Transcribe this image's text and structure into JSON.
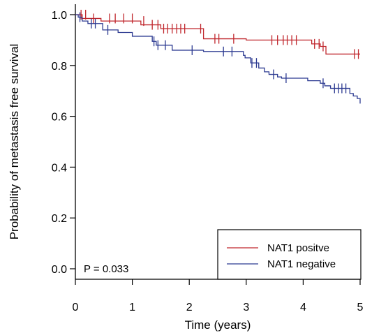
{
  "chart_data": {
    "type": "line",
    "title": "",
    "xlabel": "Time (years)",
    "ylabel": "Probability of metastasis free survival",
    "xlim": [
      0,
      5
    ],
    "ylim": [
      0,
      1
    ],
    "x_ticks": [
      0,
      1,
      2,
      3,
      4,
      5
    ],
    "y_ticks": [
      0.0,
      0.2,
      0.4,
      0.6,
      0.8,
      1.0
    ],
    "x_tick_labels": [
      "0",
      "1",
      "2",
      "3",
      "4",
      "5"
    ],
    "y_tick_labels": [
      "0.0",
      "0.2",
      "0.4",
      "0.6",
      "0.8",
      "1.0"
    ],
    "annotation": "P = 0.033",
    "legend_position": "bottom-right",
    "series": [
      {
        "name": "NAT1 positve",
        "color": "#c0272d",
        "steps": [
          [
            0,
            1.0
          ],
          [
            0.12,
            0.985
          ],
          [
            0.45,
            0.975
          ],
          [
            1.15,
            0.96
          ],
          [
            1.5,
            0.945
          ],
          [
            2.25,
            0.905
          ],
          [
            3.0,
            0.9
          ],
          [
            4.15,
            0.885
          ],
          [
            4.3,
            0.875
          ],
          [
            4.4,
            0.845
          ],
          [
            5.0,
            0.845
          ]
        ],
        "censored": [
          [
            0.1,
            1.0
          ],
          [
            0.18,
            1.0
          ],
          [
            0.32,
            0.985
          ],
          [
            0.6,
            0.985
          ],
          [
            0.7,
            0.985
          ],
          [
            0.85,
            0.985
          ],
          [
            1.0,
            0.985
          ],
          [
            1.2,
            0.975
          ],
          [
            1.35,
            0.96
          ],
          [
            1.45,
            0.96
          ],
          [
            1.55,
            0.945
          ],
          [
            1.62,
            0.945
          ],
          [
            1.7,
            0.945
          ],
          [
            1.78,
            0.945
          ],
          [
            1.85,
            0.945
          ],
          [
            1.92,
            0.945
          ],
          [
            2.2,
            0.945
          ],
          [
            2.45,
            0.905
          ],
          [
            2.52,
            0.905
          ],
          [
            2.78,
            0.905
          ],
          [
            3.45,
            0.9
          ],
          [
            3.55,
            0.9
          ],
          [
            3.65,
            0.9
          ],
          [
            3.72,
            0.9
          ],
          [
            3.8,
            0.9
          ],
          [
            3.88,
            0.9
          ],
          [
            4.2,
            0.885
          ],
          [
            4.28,
            0.885
          ],
          [
            4.35,
            0.875
          ],
          [
            4.9,
            0.845
          ],
          [
            4.97,
            0.845
          ]
        ]
      },
      {
        "name": "NAT1 negative",
        "color": "#2b3990",
        "steps": [
          [
            0,
            1.0
          ],
          [
            0.05,
            0.99
          ],
          [
            0.12,
            0.975
          ],
          [
            0.22,
            0.965
          ],
          [
            0.48,
            0.94
          ],
          [
            0.75,
            0.93
          ],
          [
            1.0,
            0.915
          ],
          [
            1.35,
            0.895
          ],
          [
            1.42,
            0.88
          ],
          [
            1.7,
            0.86
          ],
          [
            2.25,
            0.855
          ],
          [
            2.95,
            0.84
          ],
          [
            2.98,
            0.83
          ],
          [
            3.08,
            0.81
          ],
          [
            3.22,
            0.79
          ],
          [
            3.32,
            0.775
          ],
          [
            3.4,
            0.765
          ],
          [
            3.55,
            0.755
          ],
          [
            3.62,
            0.75
          ],
          [
            4.08,
            0.74
          ],
          [
            4.3,
            0.73
          ],
          [
            4.38,
            0.72
          ],
          [
            4.48,
            0.71
          ],
          [
            4.82,
            0.69
          ],
          [
            4.88,
            0.68
          ],
          [
            4.95,
            0.67
          ],
          [
            5.0,
            0.65
          ]
        ],
        "censored": [
          [
            0.08,
            0.99
          ],
          [
            0.28,
            0.965
          ],
          [
            0.35,
            0.965
          ],
          [
            0.57,
            0.94
          ],
          [
            1.38,
            0.895
          ],
          [
            1.45,
            0.88
          ],
          [
            1.58,
            0.88
          ],
          [
            2.05,
            0.86
          ],
          [
            2.6,
            0.855
          ],
          [
            2.75,
            0.855
          ],
          [
            3.1,
            0.81
          ],
          [
            3.18,
            0.81
          ],
          [
            3.48,
            0.765
          ],
          [
            3.7,
            0.75
          ],
          [
            4.35,
            0.73
          ],
          [
            4.55,
            0.71
          ],
          [
            4.62,
            0.71
          ],
          [
            4.68,
            0.71
          ],
          [
            4.75,
            0.71
          ]
        ]
      }
    ]
  }
}
